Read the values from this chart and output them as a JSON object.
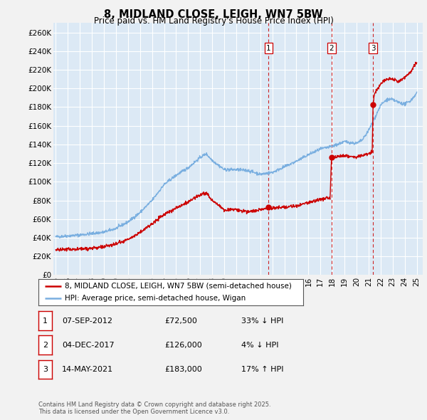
{
  "title_line1": "8, MIDLAND CLOSE, LEIGH, WN7 5BW",
  "title_line2": "Price paid vs. HM Land Registry's House Price Index (HPI)",
  "ylabel_ticks": [
    "£0",
    "£20K",
    "£40K",
    "£60K",
    "£80K",
    "£100K",
    "£120K",
    "£140K",
    "£160K",
    "£180K",
    "£200K",
    "£220K",
    "£240K",
    "£260K"
  ],
  "ytick_values": [
    0,
    20000,
    40000,
    60000,
    80000,
    100000,
    120000,
    140000,
    160000,
    180000,
    200000,
    220000,
    240000,
    260000
  ],
  "background_color": "#dce9f5",
  "fig_background_color": "#f2f2f2",
  "red_line_color": "#cc0000",
  "blue_line_color": "#7aafe0",
  "grid_color": "#ffffff",
  "vline_color": "#cc0000",
  "sale1_date_num": 2012.69,
  "sale1_price": 72500,
  "sale1_label": "1",
  "sale2_date_num": 2017.92,
  "sale2_price": 126000,
  "sale2_label": "2",
  "sale3_date_num": 2021.37,
  "sale3_price": 183000,
  "sale3_label": "3",
  "legend_line1": "8, MIDLAND CLOSE, LEIGH, WN7 5BW (semi-detached house)",
  "legend_line2": "HPI: Average price, semi-detached house, Wigan",
  "table_rows": [
    [
      "1",
      "07-SEP-2012",
      "£72,500",
      "33% ↓ HPI"
    ],
    [
      "2",
      "04-DEC-2017",
      "£126,000",
      "4% ↓ HPI"
    ],
    [
      "3",
      "14-MAY-2021",
      "£183,000",
      "17% ↑ HPI"
    ]
  ],
  "footer_text": "Contains HM Land Registry data © Crown copyright and database right 2025.\nThis data is licensed under the Open Government Licence v3.0."
}
